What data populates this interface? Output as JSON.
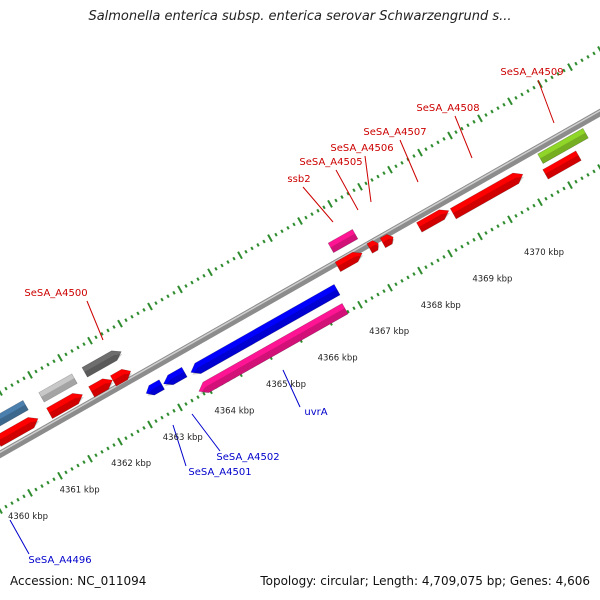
{
  "title": "Salmonella enterica subsp. enterica serovar Schwarzengrund s...",
  "footer": {
    "accession_label": "Accession:",
    "accession_value": "NC_011094",
    "topology_label": "Topology:",
    "topology_value": "circular",
    "length_label": "Length:",
    "length_value": "4,709,075 bp",
    "genes_label": "Genes:",
    "genes_value": "4,606"
  },
  "colors": {
    "label_forward": "#cc0000",
    "label_reverse": "#0000cc",
    "backbone": "#8c8c8c",
    "tick": "#2e8b2e"
  },
  "scale": {
    "unit": "kbp",
    "labels": [
      "4360 kbp",
      "4361 kbp",
      "4362 kbp",
      "4363 kbp",
      "4364 kbp",
      "4365 kbp",
      "4366 kbp",
      "4367 kbp",
      "4368 kbp",
      "4369 kbp",
      "4370 kbp"
    ]
  },
  "gene_labels": [
    {
      "name": "SeSA_A4509",
      "strand": "forward"
    },
    {
      "name": "SeSA_A4508",
      "strand": "forward"
    },
    {
      "name": "SeSA_A4507",
      "strand": "forward"
    },
    {
      "name": "SeSA_A4506",
      "strand": "forward"
    },
    {
      "name": "SeSA_A4505",
      "strand": "forward"
    },
    {
      "name": "ssb2",
      "strand": "forward"
    },
    {
      "name": "SeSA_A4500",
      "strand": "forward"
    },
    {
      "name": "uvrA",
      "strand": "reverse"
    },
    {
      "name": "SeSA_A4502",
      "strand": "reverse"
    },
    {
      "name": "SeSA_A4501",
      "strand": "reverse"
    },
    {
      "name": "SeSA_A4496",
      "strand": "reverse"
    }
  ],
  "features": [
    {
      "id": "f1",
      "color": "#4a7fae",
      "shape": "box"
    },
    {
      "id": "f2",
      "color": "#ff0000",
      "shape": "arrow"
    },
    {
      "id": "f3",
      "color": "#c8c8c8",
      "shape": "box"
    },
    {
      "id": "f4",
      "color": "#ff0000",
      "shape": "arrow"
    },
    {
      "id": "f5",
      "color": "#6e6e6e",
      "shape": "arrow"
    },
    {
      "id": "f6",
      "color": "#ff0000",
      "shape": "arrow"
    },
    {
      "id": "f7",
      "color": "#ff0000",
      "shape": "arrow"
    },
    {
      "id": "f8",
      "color": "#0000ff",
      "shape": "arrow-rev"
    },
    {
      "id": "f9",
      "color": "#0000ff",
      "shape": "arrow-rev"
    },
    {
      "id": "f10",
      "color": "#0000ff",
      "shape": "arrow-rev"
    },
    {
      "id": "f11",
      "color": "#ff1493",
      "shape": "arrow-rev"
    },
    {
      "id": "f12",
      "color": "#ff1493",
      "shape": "box"
    },
    {
      "id": "f13",
      "color": "#ff0000",
      "shape": "arrow"
    },
    {
      "id": "f14",
      "color": "#ff0000",
      "shape": "arrow"
    },
    {
      "id": "f15",
      "color": "#ff0000",
      "shape": "arrow"
    },
    {
      "id": "f16",
      "color": "#ff0000",
      "shape": "arrow"
    },
    {
      "id": "f17",
      "color": "#ff0000",
      "shape": "arrow"
    },
    {
      "id": "f18",
      "color": "#ff0000",
      "shape": "arrow"
    },
    {
      "id": "f19",
      "color": "#8fd629",
      "shape": "box"
    },
    {
      "id": "f20",
      "color": "#ff0000",
      "shape": "box"
    }
  ]
}
